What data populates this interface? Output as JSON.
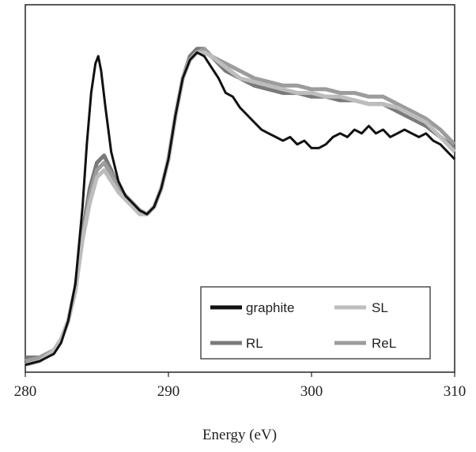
{
  "chart_data": {
    "type": "line",
    "title": "",
    "xlabel": "Energy (eV)",
    "ylabel": "",
    "xlim": [
      280,
      310
    ],
    "ylim": [
      0,
      1
    ],
    "xticks": [
      280,
      290,
      300,
      310
    ],
    "grid": false,
    "legend_position": "bottom-right",
    "series": [
      {
        "name": "graphite",
        "color": "#111111",
        "x": [
          280.0,
          281.0,
          282.0,
          282.5,
          283.0,
          283.5,
          284.0,
          284.3,
          284.6,
          284.9,
          285.1,
          285.3,
          285.6,
          286.0,
          286.5,
          287.0,
          287.5,
          288.0,
          288.5,
          289.0,
          289.5,
          290.0,
          290.5,
          291.0,
          291.5,
          292.0,
          292.5,
          293.0,
          293.5,
          294.0,
          294.5,
          295.0,
          295.5,
          296.0,
          296.5,
          297.0,
          297.5,
          298.0,
          298.5,
          299.0,
          299.5,
          300.0,
          300.5,
          301.0,
          301.5,
          302.0,
          302.5,
          303.0,
          303.5,
          304.0,
          304.5,
          305.0,
          305.5,
          306.0,
          306.5,
          307.0,
          307.5,
          308.0,
          308.5,
          309.0,
          309.5,
          310.0
        ],
        "y": [
          0.02,
          0.03,
          0.05,
          0.08,
          0.14,
          0.24,
          0.45,
          0.62,
          0.76,
          0.84,
          0.86,
          0.82,
          0.72,
          0.6,
          0.52,
          0.48,
          0.46,
          0.44,
          0.43,
          0.45,
          0.5,
          0.58,
          0.7,
          0.8,
          0.85,
          0.87,
          0.86,
          0.83,
          0.8,
          0.76,
          0.75,
          0.72,
          0.7,
          0.68,
          0.66,
          0.65,
          0.64,
          0.63,
          0.64,
          0.62,
          0.63,
          0.61,
          0.61,
          0.62,
          0.64,
          0.65,
          0.64,
          0.66,
          0.65,
          0.67,
          0.65,
          0.66,
          0.64,
          0.65,
          0.66,
          0.65,
          0.64,
          0.65,
          0.63,
          0.62,
          0.6,
          0.58
        ]
      },
      {
        "name": "SL",
        "color": "#bdbdbd",
        "x": [
          280.0,
          281.0,
          282.0,
          282.5,
          283.0,
          283.5,
          284.0,
          284.5,
          285.0,
          285.5,
          286.0,
          286.5,
          287.0,
          287.5,
          288.0,
          288.5,
          289.0,
          289.5,
          290.0,
          290.5,
          291.0,
          291.5,
          292.0,
          292.5,
          293.0,
          294.0,
          295.0,
          296.0,
          297.0,
          298.0,
          299.0,
          300.0,
          301.0,
          302.0,
          303.0,
          304.0,
          305.0,
          306.0,
          307.0,
          308.0,
          309.0,
          310.0
        ],
        "y": [
          0.02,
          0.03,
          0.06,
          0.09,
          0.14,
          0.22,
          0.36,
          0.46,
          0.53,
          0.55,
          0.52,
          0.49,
          0.47,
          0.45,
          0.43,
          0.43,
          0.45,
          0.5,
          0.58,
          0.7,
          0.8,
          0.85,
          0.87,
          0.87,
          0.86,
          0.83,
          0.8,
          0.79,
          0.78,
          0.77,
          0.76,
          0.76,
          0.75,
          0.75,
          0.74,
          0.73,
          0.73,
          0.72,
          0.7,
          0.68,
          0.64,
          0.6
        ]
      },
      {
        "name": "RL",
        "color": "#7a7a7a",
        "x": [
          280.0,
          281.0,
          282.0,
          282.5,
          283.0,
          283.5,
          284.0,
          284.5,
          285.0,
          285.5,
          286.0,
          286.5,
          287.0,
          287.5,
          288.0,
          288.5,
          289.0,
          289.5,
          290.0,
          290.5,
          291.0,
          291.5,
          292.0,
          292.5,
          293.0,
          294.0,
          295.0,
          296.0,
          297.0,
          298.0,
          299.0,
          300.0,
          301.0,
          302.0,
          303.0,
          304.0,
          305.0,
          306.0,
          307.0,
          308.0,
          309.0,
          310.0
        ],
        "y": [
          0.04,
          0.04,
          0.06,
          0.09,
          0.14,
          0.23,
          0.38,
          0.5,
          0.57,
          0.59,
          0.55,
          0.5,
          0.48,
          0.46,
          0.44,
          0.43,
          0.45,
          0.5,
          0.58,
          0.7,
          0.8,
          0.86,
          0.88,
          0.88,
          0.86,
          0.82,
          0.8,
          0.78,
          0.77,
          0.76,
          0.76,
          0.75,
          0.75,
          0.74,
          0.74,
          0.73,
          0.73,
          0.71,
          0.69,
          0.67,
          0.64,
          0.61
        ]
      },
      {
        "name": "ReL",
        "color": "#9c9c9c",
        "x": [
          280.0,
          281.0,
          282.0,
          282.5,
          283.0,
          283.5,
          284.0,
          284.5,
          285.0,
          285.5,
          286.0,
          286.5,
          287.0,
          287.5,
          288.0,
          288.5,
          289.0,
          289.5,
          290.0,
          290.5,
          291.0,
          291.5,
          292.0,
          292.5,
          293.0,
          294.0,
          295.0,
          296.0,
          297.0,
          298.0,
          299.0,
          300.0,
          301.0,
          302.0,
          303.0,
          304.0,
          305.0,
          306.0,
          307.0,
          308.0,
          309.0,
          310.0
        ],
        "y": [
          0.03,
          0.04,
          0.06,
          0.09,
          0.14,
          0.22,
          0.37,
          0.48,
          0.55,
          0.57,
          0.54,
          0.5,
          0.48,
          0.46,
          0.44,
          0.43,
          0.45,
          0.5,
          0.58,
          0.7,
          0.8,
          0.85,
          0.87,
          0.88,
          0.86,
          0.84,
          0.82,
          0.8,
          0.79,
          0.78,
          0.78,
          0.77,
          0.77,
          0.76,
          0.76,
          0.75,
          0.75,
          0.73,
          0.71,
          0.69,
          0.66,
          0.62
        ]
      }
    ]
  }
}
